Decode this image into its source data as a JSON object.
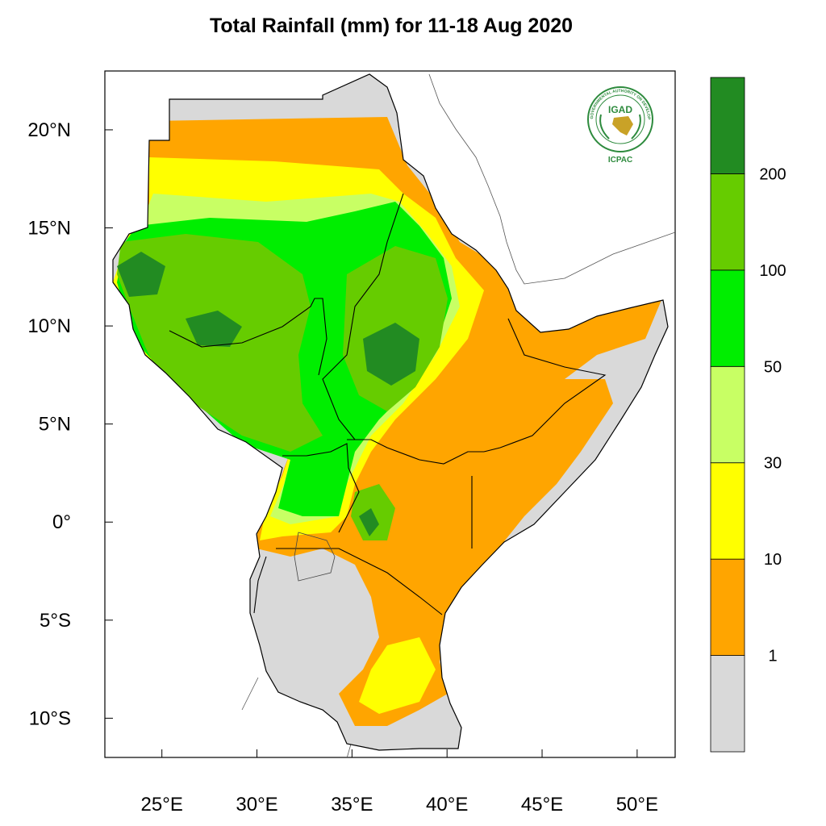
{
  "title": "Total Rainfall (mm) for 11-18 Aug 2020",
  "logo": {
    "name": "IGAD",
    "caption": "ICPAC",
    "ring_text": "INTERGOVERNMENTAL AUTHORITY ON DEVELOPMENT",
    "colors": {
      "green": "#2e8b3e",
      "gold": "#c9a227"
    }
  },
  "map": {
    "lon_range": [
      22,
      52
    ],
    "lat_range": [
      -12,
      23
    ],
    "lon_ticks": [
      {
        "value": 25,
        "label": "25°E"
      },
      {
        "value": 30,
        "label": "30°E"
      },
      {
        "value": 35,
        "label": "35°E"
      },
      {
        "value": 40,
        "label": "40°E"
      },
      {
        "value": 45,
        "label": "45°E"
      },
      {
        "value": 50,
        "label": "50°E"
      }
    ],
    "lat_ticks": [
      {
        "value": 20,
        "label": "20°N"
      },
      {
        "value": 15,
        "label": "15°N"
      },
      {
        "value": 10,
        "label": "10°N"
      },
      {
        "value": 5,
        "label": "5°N"
      },
      {
        "value": 0,
        "label": "0°"
      },
      {
        "value": -5,
        "label": "5°S"
      },
      {
        "value": -10,
        "label": "10°S"
      }
    ],
    "no_data_color": "#d9d9d9",
    "border_color": "#000000"
  },
  "legend": {
    "colors": [
      "#d9d9d9",
      "#ffa500",
      "#ffff00",
      "#c8ff64",
      "#00ee00",
      "#66cc00",
      "#228b22"
    ],
    "labels": [
      "1",
      "10",
      "30",
      "50",
      "100",
      "200"
    ]
  }
}
